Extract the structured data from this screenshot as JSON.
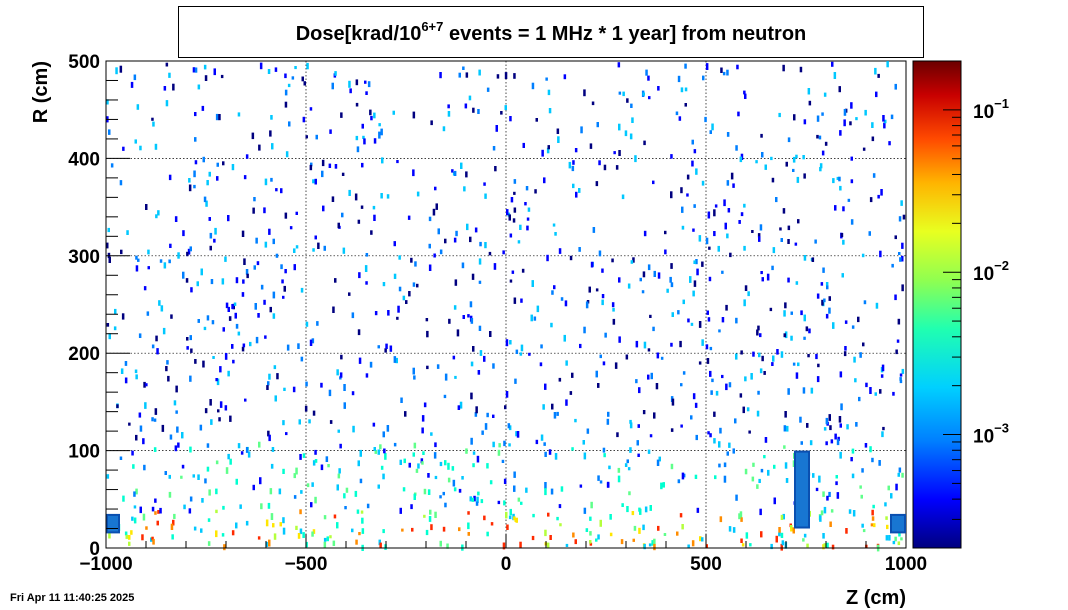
{
  "title": {
    "prefix": "Dose[krad/10",
    "superscript": "6+7",
    "suffix": " events = 1 MHz * 1 year] from neutron"
  },
  "timestamp": "Fri Apr 11 11:40:25 2025",
  "colors": {
    "palette": [
      "#00007f",
      "#0000ff",
      "#007fff",
      "#00c8ff",
      "#00ffd0",
      "#5fff8a",
      "#b4ff3c",
      "#ffe600",
      "#ff8c00",
      "#ff2a00",
      "#a00000",
      "#6b0000"
    ]
  },
  "chart_data": {
    "type": "heatmap",
    "xlabel": "Z (cm)",
    "ylabel": "R (cm)",
    "xlim": [
      -1000,
      1000
    ],
    "ylim": [
      0,
      500
    ],
    "x_ticks": [
      -1000,
      -500,
      0,
      500,
      1000
    ],
    "x_tick_labels": [
      "−1000",
      "−500",
      "0",
      "500",
      "1000"
    ],
    "y_ticks": [
      0,
      100,
      200,
      300,
      400,
      500
    ],
    "y_tick_labels": [
      "0",
      "100",
      "200",
      "300",
      "400",
      "500"
    ],
    "grid": true,
    "colorbar": {
      "scale": "log",
      "range": [
        0.0002,
        0.2
      ],
      "labels": [
        {
          "base": "10",
          "exp": "−3",
          "value": 0.001
        },
        {
          "base": "10",
          "exp": "−2",
          "value": 0.01
        },
        {
          "base": "10",
          "exp": "−1",
          "value": 0.1
        }
      ]
    },
    "hot_regions": [
      {
        "z": [
          -1000,
          -965
        ],
        "r": [
          15,
          35
        ],
        "dose": 0.0005
      },
      {
        "z": [
          720,
          760
        ],
        "r": [
          20,
          100
        ],
        "dose": 0.0006
      },
      {
        "z": [
          960,
          1000
        ],
        "r": [
          15,
          35
        ],
        "dose": 0.0005
      }
    ]
  }
}
